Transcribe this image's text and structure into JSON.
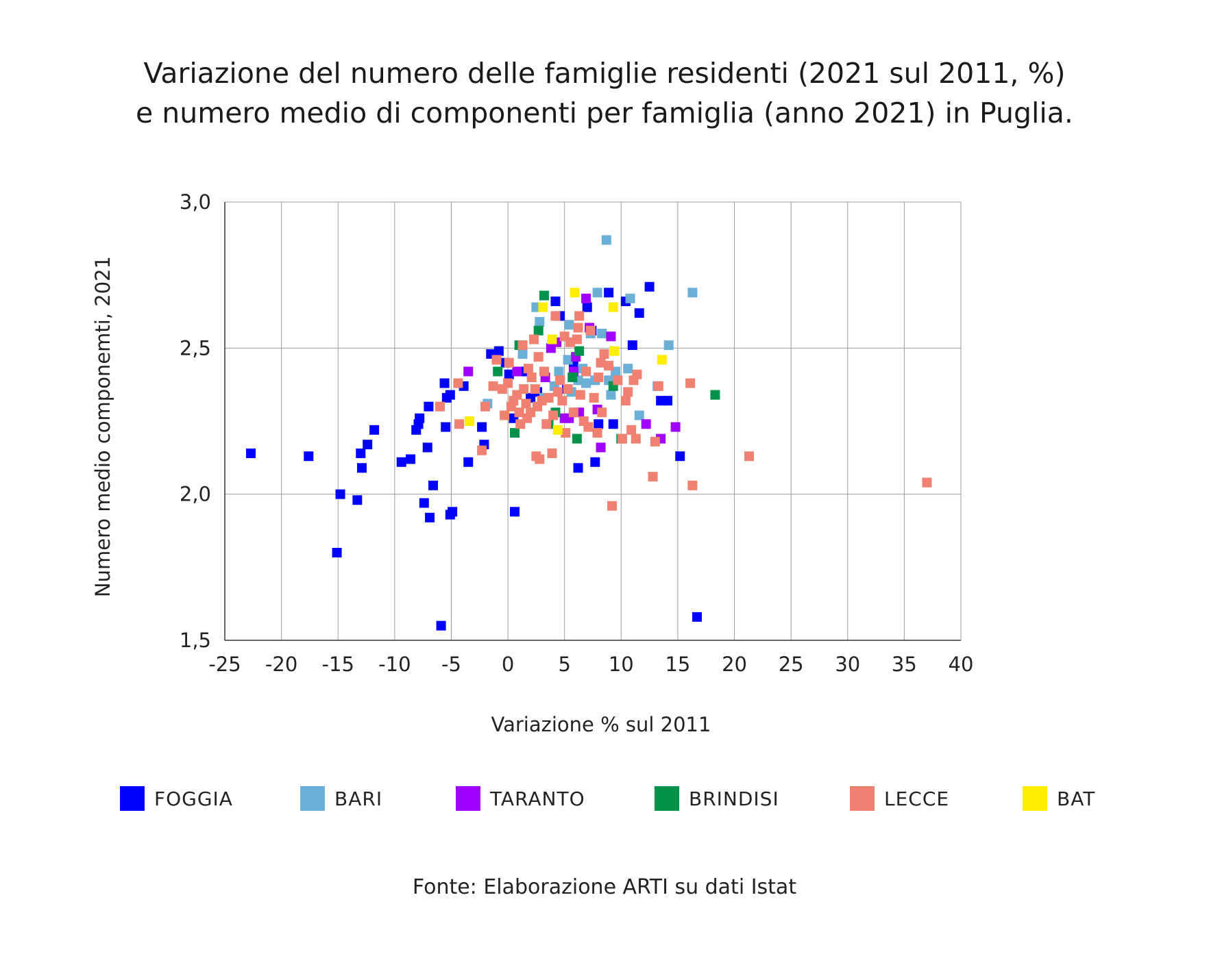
{
  "title_line1": "Variazione del numero delle famiglie residenti (2021 sul 2011, %)",
  "title_line2": "e numero medio di componenti per famiglia (anno 2021) in Puglia.",
  "source": "Fonte: Elaborazione ARTI su dati Istat",
  "chart_data": {
    "type": "scatter",
    "xlabel": "Variazione % sul 2011",
    "ylabel": "Numero medio componemti, 2021",
    "xlim": [
      -25,
      40
    ],
    "ylim": [
      1.5,
      3.0
    ],
    "xticks": [
      -25,
      -20,
      -15,
      -10,
      -5,
      0,
      5,
      10,
      15,
      20,
      25,
      30,
      35,
      40
    ],
    "xtick_labels": [
      "-25",
      "-20",
      "-15",
      "-10",
      "-5",
      "0",
      "5",
      "10",
      "15",
      "20",
      "25",
      "30",
      "35",
      "40"
    ],
    "yticks": [
      1.5,
      2.0,
      2.5,
      3.0
    ],
    "ytick_labels": [
      "1,5",
      "2,0",
      "2,5",
      "3,0"
    ],
    "grid": true,
    "legend_position": "bottom",
    "series": [
      {
        "name": "FOGGIA",
        "color": "#0000ff",
        "points": [
          [
            -22.7,
            2.14
          ],
          [
            -17.6,
            2.13
          ],
          [
            -15.1,
            1.8
          ],
          [
            -14.8,
            2.0
          ],
          [
            -13.3,
            1.98
          ],
          [
            -13.0,
            2.14
          ],
          [
            -12.9,
            2.09
          ],
          [
            -12.4,
            2.17
          ],
          [
            -11.8,
            2.22
          ],
          [
            -9.4,
            2.11
          ],
          [
            -8.6,
            2.12
          ],
          [
            -8.1,
            2.22
          ],
          [
            -7.9,
            2.24
          ],
          [
            -7.8,
            2.26
          ],
          [
            -7.4,
            1.97
          ],
          [
            -7.1,
            2.16
          ],
          [
            -7.0,
            2.3
          ],
          [
            -6.9,
            1.92
          ],
          [
            -6.6,
            2.03
          ],
          [
            -5.9,
            1.55
          ],
          [
            -5.6,
            2.38
          ],
          [
            -5.5,
            2.23
          ],
          [
            -5.4,
            2.33
          ],
          [
            -5.1,
            2.34
          ],
          [
            -5.1,
            1.93
          ],
          [
            -4.9,
            1.94
          ],
          [
            -3.9,
            2.37
          ],
          [
            -3.5,
            2.11
          ],
          [
            -2.3,
            2.23
          ],
          [
            -2.1,
            2.17
          ],
          [
            -1.5,
            2.48
          ],
          [
            -0.8,
            2.49
          ],
          [
            -0.2,
            2.45
          ],
          [
            0.1,
            2.41
          ],
          [
            0.5,
            2.26
          ],
          [
            0.6,
            1.94
          ],
          [
            0.9,
            2.42
          ],
          [
            1.5,
            2.42
          ],
          [
            2.0,
            2.33
          ],
          [
            2.6,
            2.35
          ],
          [
            4.2,
            2.66
          ],
          [
            4.6,
            2.61
          ],
          [
            5.2,
            2.36
          ],
          [
            5.8,
            2.44
          ],
          [
            6.2,
            2.09
          ],
          [
            7.0,
            2.64
          ],
          [
            7.4,
            2.56
          ],
          [
            7.7,
            2.11
          ],
          [
            8.0,
            2.24
          ],
          [
            8.9,
            2.69
          ],
          [
            9.3,
            2.24
          ],
          [
            10.4,
            2.66
          ],
          [
            11.0,
            2.51
          ],
          [
            11.6,
            2.62
          ],
          [
            12.5,
            2.71
          ],
          [
            13.5,
            2.32
          ],
          [
            14.1,
            2.32
          ],
          [
            15.2,
            2.13
          ],
          [
            16.7,
            1.58
          ]
        ]
      },
      {
        "name": "BARI",
        "color": "#6baed6",
        "points": [
          [
            -1.8,
            2.31
          ],
          [
            1.3,
            2.48
          ],
          [
            2.5,
            2.64
          ],
          [
            2.8,
            2.59
          ],
          [
            3.2,
            2.33
          ],
          [
            4.1,
            2.37
          ],
          [
            4.5,
            2.42
          ],
          [
            5.3,
            2.46
          ],
          [
            5.4,
            2.58
          ],
          [
            5.6,
            2.35
          ],
          [
            6.2,
            2.39
          ],
          [
            6.6,
            2.43
          ],
          [
            6.9,
            2.38
          ],
          [
            7.3,
            2.55
          ],
          [
            7.7,
            2.39
          ],
          [
            7.9,
            2.69
          ],
          [
            8.3,
            2.55
          ],
          [
            8.7,
            2.87
          ],
          [
            8.9,
            2.39
          ],
          [
            9.1,
            2.34
          ],
          [
            9.5,
            2.42
          ],
          [
            10.6,
            2.43
          ],
          [
            10.8,
            2.67
          ],
          [
            11.6,
            2.27
          ],
          [
            13.2,
            2.37
          ],
          [
            14.2,
            2.51
          ],
          [
            16.3,
            2.69
          ]
        ]
      },
      {
        "name": "TARANTO",
        "color": "#a000ff",
        "points": [
          [
            -3.5,
            2.42
          ],
          [
            0.8,
            2.42
          ],
          [
            3.3,
            2.4
          ],
          [
            3.8,
            2.5
          ],
          [
            4.3,
            2.52
          ],
          [
            5.0,
            2.26
          ],
          [
            5.4,
            2.26
          ],
          [
            5.8,
            2.42
          ],
          [
            6.0,
            2.47
          ],
          [
            6.3,
            2.28
          ],
          [
            6.9,
            2.67
          ],
          [
            7.2,
            2.57
          ],
          [
            7.9,
            2.29
          ],
          [
            8.2,
            2.16
          ],
          [
            9.1,
            2.54
          ],
          [
            12.2,
            2.24
          ],
          [
            13.5,
            2.19
          ],
          [
            14.8,
            2.23
          ]
        ]
      },
      {
        "name": "BRINDISI",
        "color": "#00924a",
        "points": [
          [
            -0.9,
            2.42
          ],
          [
            0.6,
            2.21
          ],
          [
            1.0,
            2.51
          ],
          [
            2.7,
            2.56
          ],
          [
            3.2,
            2.68
          ],
          [
            3.6,
            2.24
          ],
          [
            4.2,
            2.28
          ],
          [
            5.7,
            2.4
          ],
          [
            6.1,
            2.19
          ],
          [
            6.3,
            2.49
          ],
          [
            9.3,
            2.37
          ],
          [
            10.0,
            2.19
          ],
          [
            18.3,
            2.34
          ]
        ]
      },
      {
        "name": "LECCE",
        "color": "#f08070",
        "points": [
          [
            -6.0,
            2.3
          ],
          [
            -4.4,
            2.38
          ],
          [
            -4.3,
            2.24
          ],
          [
            -2.3,
            2.15
          ],
          [
            -2.0,
            2.3
          ],
          [
            -1.3,
            2.37
          ],
          [
            -1.0,
            2.46
          ],
          [
            -0.5,
            2.36
          ],
          [
            -0.3,
            2.27
          ],
          [
            0.0,
            2.38
          ],
          [
            0.1,
            2.45
          ],
          [
            0.3,
            2.3
          ],
          [
            0.5,
            2.32
          ],
          [
            0.8,
            2.34
          ],
          [
            1.0,
            2.28
          ],
          [
            1.1,
            2.24
          ],
          [
            1.3,
            2.51
          ],
          [
            1.4,
            2.36
          ],
          [
            1.6,
            2.31
          ],
          [
            1.7,
            2.26
          ],
          [
            1.8,
            2.43
          ],
          [
            2.0,
            2.28
          ],
          [
            2.1,
            2.4
          ],
          [
            2.3,
            2.53
          ],
          [
            2.4,
            2.36
          ],
          [
            2.5,
            2.13
          ],
          [
            2.6,
            2.3
          ],
          [
            2.7,
            2.47
          ],
          [
            2.8,
            2.12
          ],
          [
            3.0,
            2.32
          ],
          [
            3.2,
            2.42
          ],
          [
            3.4,
            2.24
          ],
          [
            3.6,
            2.33
          ],
          [
            3.9,
            2.14
          ],
          [
            4.0,
            2.27
          ],
          [
            4.2,
            2.61
          ],
          [
            4.4,
            2.35
          ],
          [
            4.6,
            2.39
          ],
          [
            4.8,
            2.32
          ],
          [
            5.0,
            2.54
          ],
          [
            5.1,
            2.21
          ],
          [
            5.3,
            2.36
          ],
          [
            5.5,
            2.52
          ],
          [
            5.8,
            2.28
          ],
          [
            6.1,
            2.53
          ],
          [
            6.2,
            2.57
          ],
          [
            6.3,
            2.61
          ],
          [
            6.4,
            2.34
          ],
          [
            6.7,
            2.25
          ],
          [
            6.9,
            2.42
          ],
          [
            7.1,
            2.23
          ],
          [
            7.3,
            2.56
          ],
          [
            7.6,
            2.33
          ],
          [
            7.9,
            2.21
          ],
          [
            8.0,
            2.4
          ],
          [
            8.2,
            2.45
          ],
          [
            8.3,
            2.28
          ],
          [
            8.5,
            2.48
          ],
          [
            8.9,
            2.44
          ],
          [
            9.2,
            1.96
          ],
          [
            9.7,
            2.39
          ],
          [
            10.1,
            2.19
          ],
          [
            10.4,
            2.32
          ],
          [
            10.6,
            2.35
          ],
          [
            10.9,
            2.22
          ],
          [
            11.1,
            2.39
          ],
          [
            11.3,
            2.19
          ],
          [
            11.4,
            2.41
          ],
          [
            12.8,
            2.06
          ],
          [
            13.0,
            2.18
          ],
          [
            13.3,
            2.37
          ],
          [
            16.1,
            2.38
          ],
          [
            16.3,
            2.03
          ],
          [
            21.3,
            2.13
          ],
          [
            37.0,
            2.04
          ]
        ]
      },
      {
        "name": "BAT",
        "color": "#ffed00",
        "points": [
          [
            -3.4,
            2.25
          ],
          [
            3.1,
            2.64
          ],
          [
            3.9,
            2.53
          ],
          [
            4.4,
            2.22
          ],
          [
            5.9,
            2.69
          ],
          [
            9.3,
            2.64
          ],
          [
            9.4,
            2.49
          ],
          [
            13.6,
            2.46
          ]
        ]
      }
    ]
  }
}
